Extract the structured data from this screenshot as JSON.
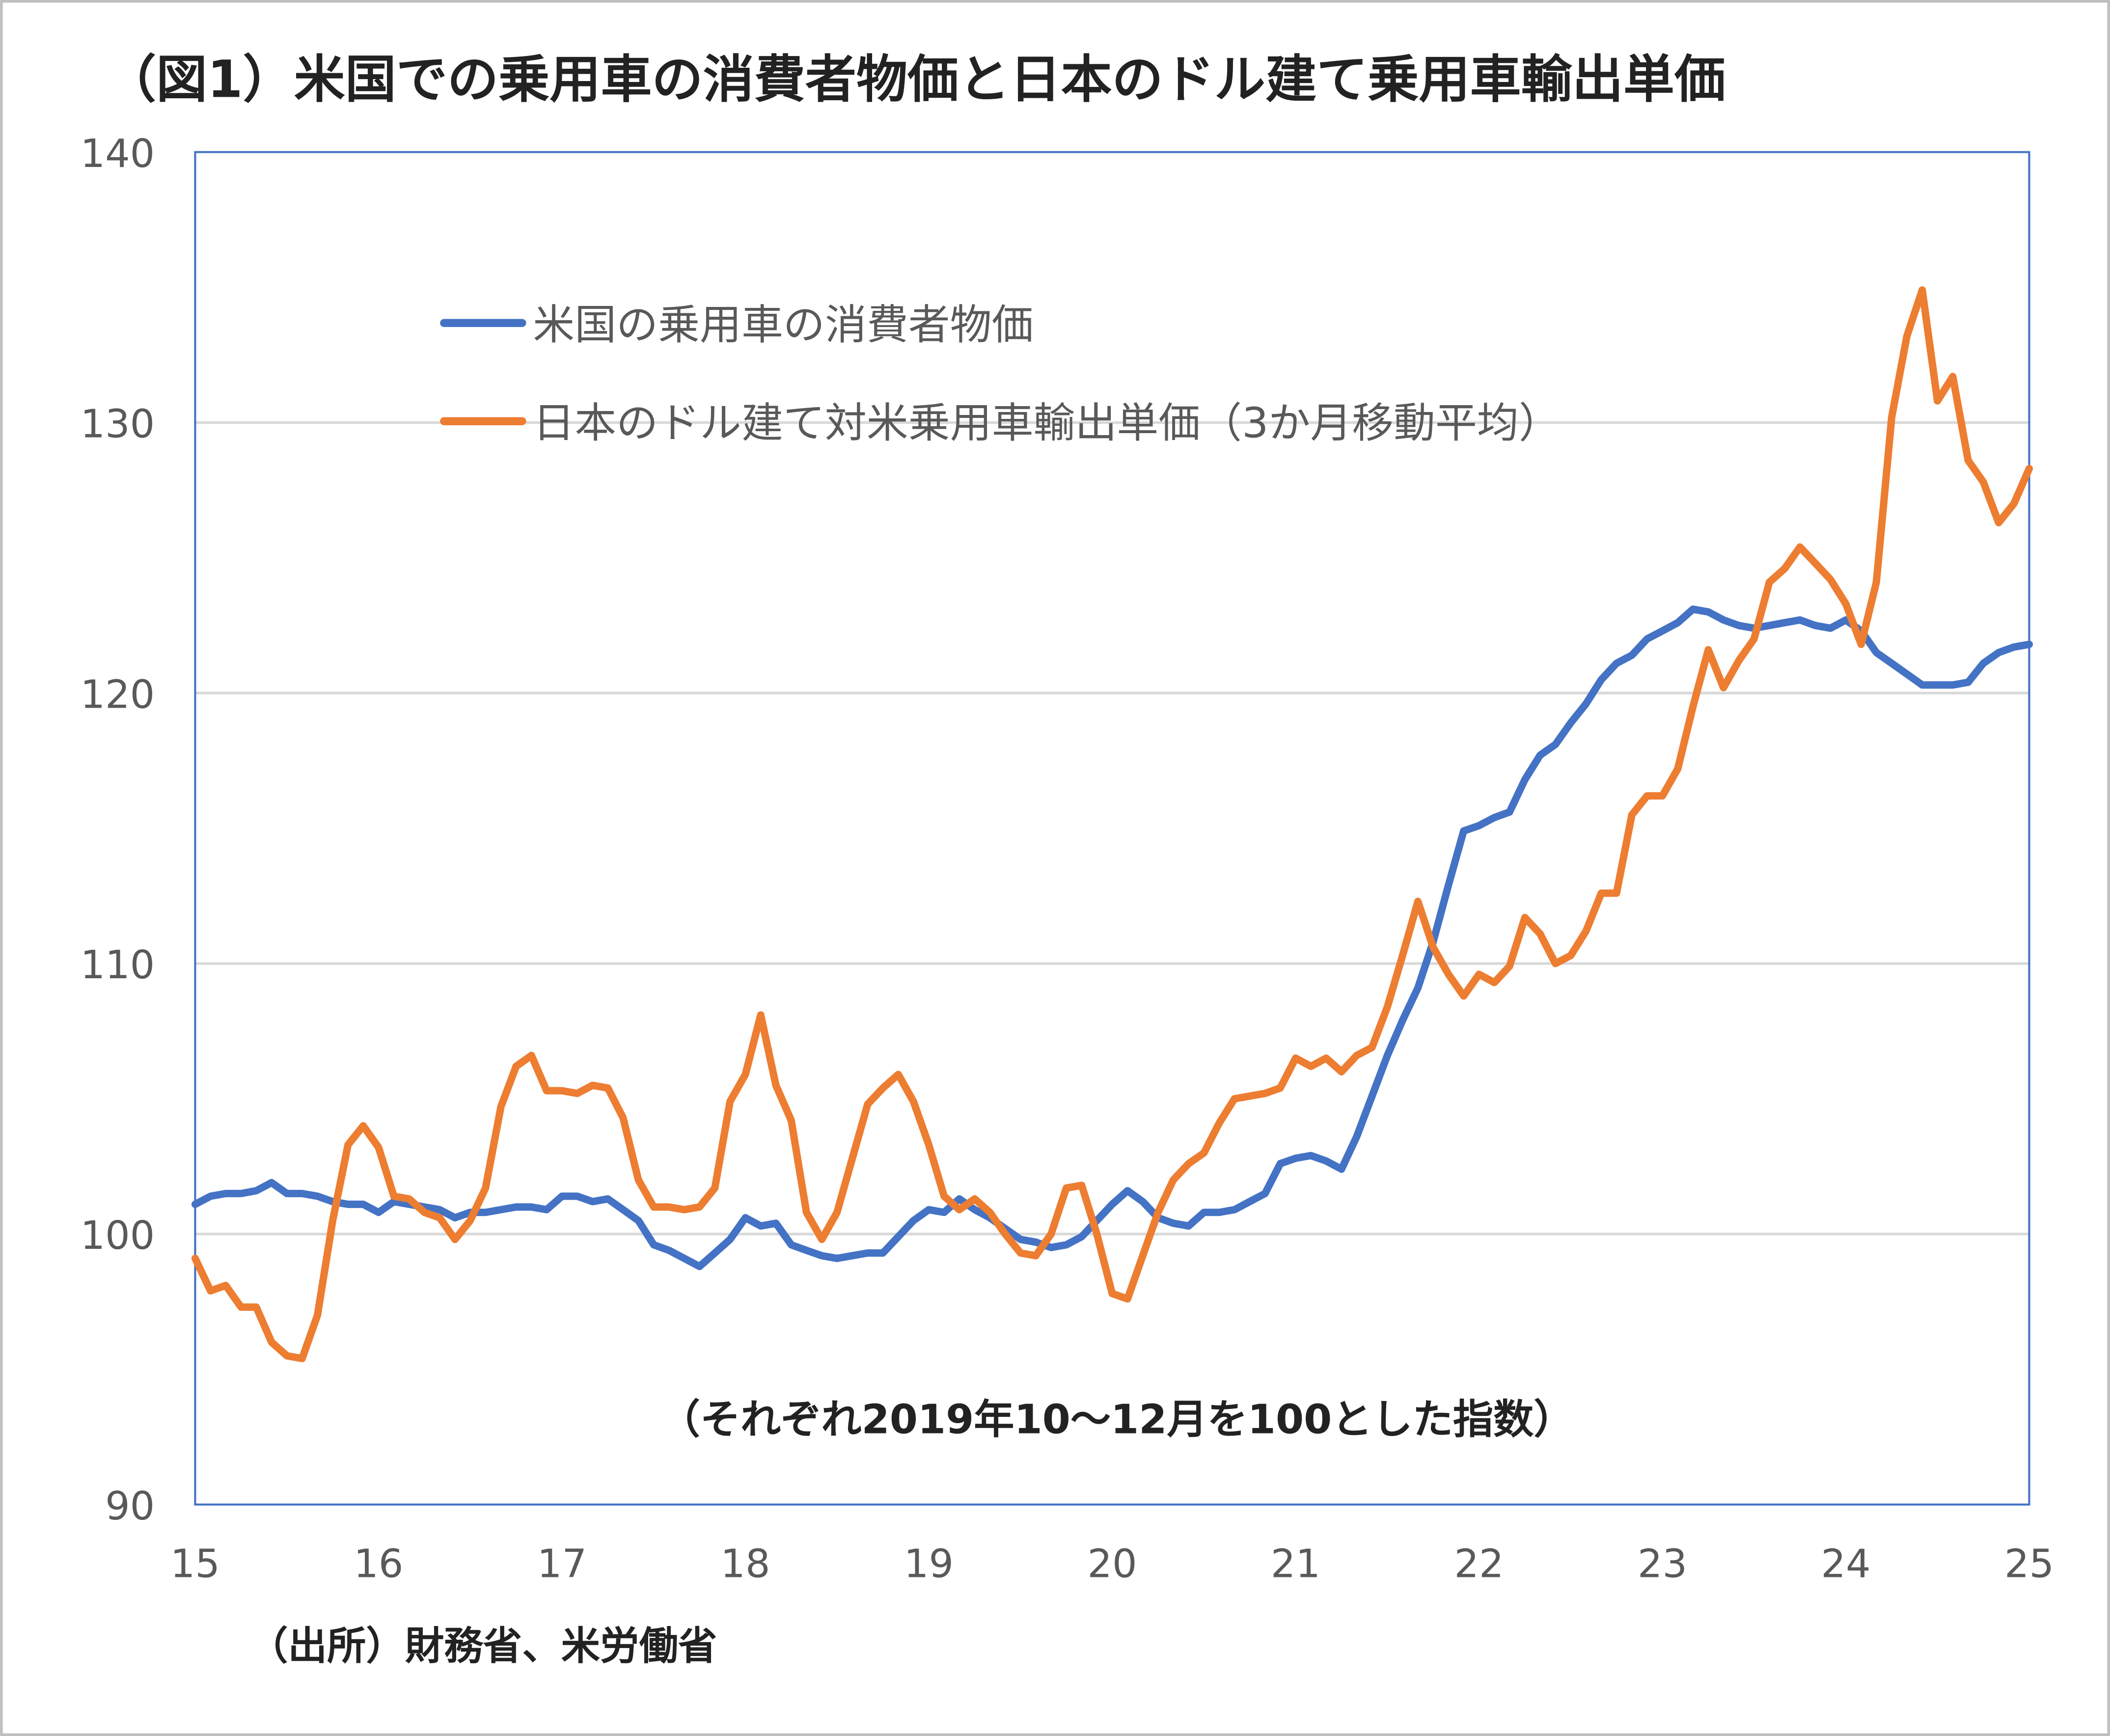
{
  "chart_data": {
    "type": "line",
    "title": "（図1）米国での乗用車の消費者物価と日本のドル建て乗用車輸出単価",
    "annotation": "（それぞれ2019年10～12月を100とした指数）",
    "source": "（出所）財務省、米労働省",
    "xlabel": "",
    "ylabel": "",
    "ylim": [
      90,
      140
    ],
    "yticks": [
      "90",
      "100",
      "110",
      "120",
      "130",
      "140"
    ],
    "xticks": [
      "15",
      "16",
      "17",
      "18",
      "19",
      "20",
      "21",
      "22",
      "23",
      "24",
      "25"
    ],
    "grid": true,
    "legend_placement": "top-center",
    "x_start": "2015-01",
    "x_frequency": "monthly",
    "series": [
      {
        "name": "米国の乗用車の消費者物価",
        "color": "#4472C4",
        "values": [
          101.1,
          101.4,
          101.5,
          101.5,
          101.6,
          101.9,
          101.5,
          101.5,
          101.4,
          101.2,
          101.1,
          101.1,
          100.8,
          101.2,
          101.1,
          101.0,
          100.9,
          100.6,
          100.8,
          100.8,
          100.9,
          101.0,
          101.0,
          100.9,
          101.4,
          101.4,
          101.2,
          101.3,
          100.9,
          100.5,
          99.6,
          99.4,
          99.1,
          98.8,
          99.3,
          99.8,
          100.6,
          100.3,
          100.4,
          99.6,
          99.4,
          99.2,
          99.1,
          99.2,
          99.3,
          99.3,
          99.9,
          100.5,
          100.9,
          100.8,
          101.3,
          100.9,
          100.6,
          100.2,
          99.8,
          99.7,
          99.5,
          99.6,
          99.9,
          100.5,
          101.1,
          101.6,
          101.2,
          100.6,
          100.4,
          100.3,
          100.8,
          100.8,
          100.9,
          101.2,
          101.5,
          102.6,
          102.8,
          102.9,
          102.7,
          102.4,
          103.6,
          105.1,
          106.6,
          107.9,
          109.1,
          110.8,
          112.9,
          114.9,
          115.1,
          115.4,
          115.6,
          116.8,
          117.7,
          118.1,
          118.9,
          119.6,
          120.5,
          121.1,
          121.4,
          122.0,
          122.3,
          122.6,
          123.1,
          123.0,
          122.7,
          122.5,
          122.4,
          122.5,
          122.6,
          122.7,
          122.5,
          122.4,
          122.7,
          122.3,
          121.5,
          121.1,
          120.7,
          120.3,
          120.3,
          120.3,
          120.4,
          121.1,
          121.5,
          121.7,
          121.8
        ]
      },
      {
        "name": "日本のドル建て対米乗用車輸出単価（3か月移動平均）",
        "color": "#ED7D31",
        "values": [
          99.1,
          97.9,
          98.1,
          97.3,
          97.3,
          96.0,
          95.5,
          95.4,
          97.0,
          100.5,
          103.3,
          104.0,
          103.2,
          101.4,
          101.3,
          100.8,
          100.6,
          99.8,
          100.5,
          101.7,
          104.7,
          106.2,
          106.6,
          105.3,
          105.3,
          105.2,
          105.5,
          105.4,
          104.3,
          102.0,
          101.0,
          101.0,
          100.9,
          101.0,
          101.7,
          104.9,
          105.9,
          108.1,
          105.5,
          104.2,
          100.8,
          99.8,
          100.8,
          102.8,
          104.8,
          105.4,
          105.9,
          104.9,
          103.3,
          101.4,
          100.9,
          101.3,
          100.8,
          100.0,
          99.3,
          99.2,
          100.0,
          101.7,
          101.8,
          100.0,
          97.8,
          97.6,
          99.2,
          100.8,
          102.0,
          102.6,
          103.0,
          104.1,
          105.0,
          105.1,
          105.2,
          105.4,
          106.5,
          106.2,
          106.5,
          106.0,
          106.6,
          106.9,
          108.4,
          110.3,
          112.3,
          110.6,
          109.6,
          108.8,
          109.6,
          109.3,
          109.9,
          111.7,
          111.1,
          110.0,
          110.3,
          111.2,
          112.6,
          112.6,
          115.5,
          116.2,
          116.2,
          117.2,
          119.5,
          121.6,
          120.2,
          121.2,
          122.0,
          124.1,
          124.6,
          125.4,
          124.8,
          124.2,
          123.3,
          121.8,
          124.1,
          130.2,
          133.2,
          134.9,
          130.8,
          131.7,
          128.6,
          127.8,
          126.3,
          127.0,
          128.3
        ]
      }
    ]
  }
}
